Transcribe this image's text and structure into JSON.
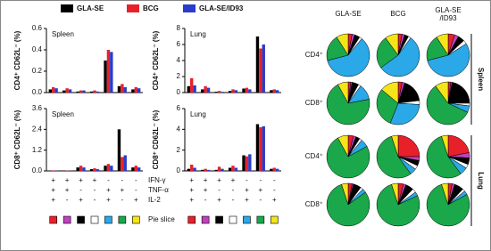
{
  "legend": [
    {
      "name": "GLA-SE",
      "color": "#000000"
    },
    {
      "name": "BCG",
      "color": "#e8202a"
    },
    {
      "name": "GLA-SE/ID93",
      "color": "#2a3cc8"
    }
  ],
  "combinations": {
    "rows": [
      {
        "label": "IFN-γ",
        "signs": [
          "+",
          "+",
          "+",
          "+",
          "-",
          "-",
          "-"
        ]
      },
      {
        "label": "TNF-α",
        "signs": [
          "+",
          "+",
          "-",
          "-",
          "+",
          "+",
          "-"
        ]
      },
      {
        "label": "IL-2",
        "signs": [
          "+",
          "-",
          "+",
          "-",
          "+",
          "-",
          "+"
        ]
      }
    ],
    "pie_label": "Pie slice",
    "colors": [
      "#e8202a",
      "#c040c0",
      "#000000",
      "#ffffff",
      "#2aa8e8",
      "#1aa84a",
      "#f4e41a"
    ]
  },
  "chart_data": [
    {
      "type": "bar",
      "y_label": "CD4⁺ CD62L⁻ (%)",
      "annotation": "Spleen",
      "categories": [
        null,
        null,
        null,
        null,
        null,
        null,
        null
      ],
      "series": [
        {
          "values": [
            0.03,
            0.02,
            0.01,
            0.01,
            0.3,
            0.06,
            0.03
          ]
        },
        {
          "values": [
            0.05,
            0.04,
            0.02,
            0.02,
            0.4,
            0.08,
            0.05
          ]
        },
        {
          "values": [
            0.04,
            0.03,
            0.02,
            0.01,
            0.38,
            0.05,
            0.04
          ]
        }
      ],
      "ylim": [
        0,
        0.6
      ],
      "yticks": [
        {
          "value": 0,
          "label": "0.0"
        },
        0.2,
        0.4,
        0.6
      ]
    },
    {
      "type": "bar",
      "y_label": "CD4⁺ CD62L⁻ (%)",
      "annotation": "Lung",
      "categories": [
        null,
        null,
        null,
        null,
        null,
        null,
        null
      ],
      "series": [
        {
          "values": [
            0.8,
            0.4,
            0.1,
            0.2,
            0.5,
            7,
            0.3
          ]
        },
        {
          "values": [
            1.8,
            0.8,
            0.2,
            0.4,
            0.6,
            5.5,
            0.4
          ]
        },
        {
          "values": [
            0.9,
            0.6,
            0.1,
            0.3,
            0.4,
            6,
            0.3
          ]
        }
      ],
      "ylim": [
        0,
        8
      ],
      "yticks": [
        0,
        2,
        4,
        6,
        8
      ]
    },
    {
      "type": "bar",
      "y_label": "CD8⁺ CD62L⁻ (%)",
      "annotation": "Spleen",
      "categories": [
        null,
        null,
        null,
        null,
        null,
        null,
        null
      ],
      "series": [
        {
          "values": [
            0.02,
            0.01,
            0.2,
            0.1,
            0.3,
            2.4,
            0.2
          ]
        },
        {
          "values": [
            0.03,
            0.02,
            0.3,
            0.15,
            0.4,
            0.8,
            0.3
          ]
        },
        {
          "values": [
            0.03,
            0.01,
            0.2,
            0.1,
            0.3,
            0.9,
            0.2
          ]
        }
      ],
      "ylim": [
        0,
        3.6
      ],
      "yticks": [
        {
          "value": 0,
          "label": "0.0"
        },
        1.2,
        2.4,
        3.6
      ]
    },
    {
      "type": "bar",
      "y_label": "CD8⁺ CD62L⁻ (%)",
      "annotation": "Lung",
      "categories": [
        null,
        null,
        null,
        null,
        null,
        null,
        null
      ],
      "series": [
        {
          "values": [
            0.2,
            0.1,
            0.1,
            0.3,
            1.5,
            4.5,
            0.2
          ]
        },
        {
          "values": [
            0.6,
            0.2,
            0.4,
            0.5,
            1.4,
            4.2,
            0.3
          ]
        },
        {
          "values": [
            0.3,
            0.1,
            0.2,
            0.3,
            1.6,
            4.3,
            0.2
          ]
        }
      ],
      "ylim": [
        0,
        6
      ],
      "yticks": [
        0,
        2,
        4,
        6
      ]
    },
    {
      "type": "pie-grid",
      "columns": [
        [
          "GLA-SE"
        ],
        [
          "BCG"
        ],
        [
          "GLA-SE",
          "/ID93"
        ]
      ],
      "groups": [
        {
          "name": "Spleen",
          "rows": [
            {
              "label": "CD4⁺",
              "pies": [
                [
                  3,
                  2,
                  4,
                  2,
                  60,
                  20,
                  9
                ],
                [
                  3,
                  2,
                  3,
                  2,
                  55,
                  25,
                  10
                ],
                [
                  5,
                  3,
                  5,
                  3,
                  55,
                  20,
                  9
                ]
              ]
            },
            {
              "label": "CD8⁺",
              "pies": [
                [
                  2,
                  1,
                  5,
                  2,
                  12,
                  70,
                  8
                ],
                [
                  3,
                  2,
                  18,
                  3,
                  30,
                  30,
                  14
                ],
                [
                  2,
                  1,
                  22,
                  2,
                  5,
                  58,
                  10
                ]
              ]
            }
          ]
        },
        {
          "name": "Lung",
          "rows": [
            {
              "label": "CD4⁺",
              "pies": [
                [
                  4,
                  2,
                  3,
                  2,
                  6,
                  75,
                  8
                ],
                [
                  25,
                  3,
                  4,
                  3,
                  5,
                  55,
                  5
                ],
                [
                  22,
                  4,
                  5,
                  3,
                  6,
                  55,
                  5
                ]
              ]
            },
            {
              "label": "CD8⁺",
              "pies": [
                [
                  3,
                  1,
                  6,
                  2,
                  3,
                  80,
                  5
                ],
                [
                  4,
                  2,
                  6,
                  3,
                  3,
                  77,
                  5
                ],
                [
                  3,
                  2,
                  7,
                  2,
                  3,
                  78,
                  5
                ]
              ]
            }
          ]
        }
      ]
    }
  ]
}
